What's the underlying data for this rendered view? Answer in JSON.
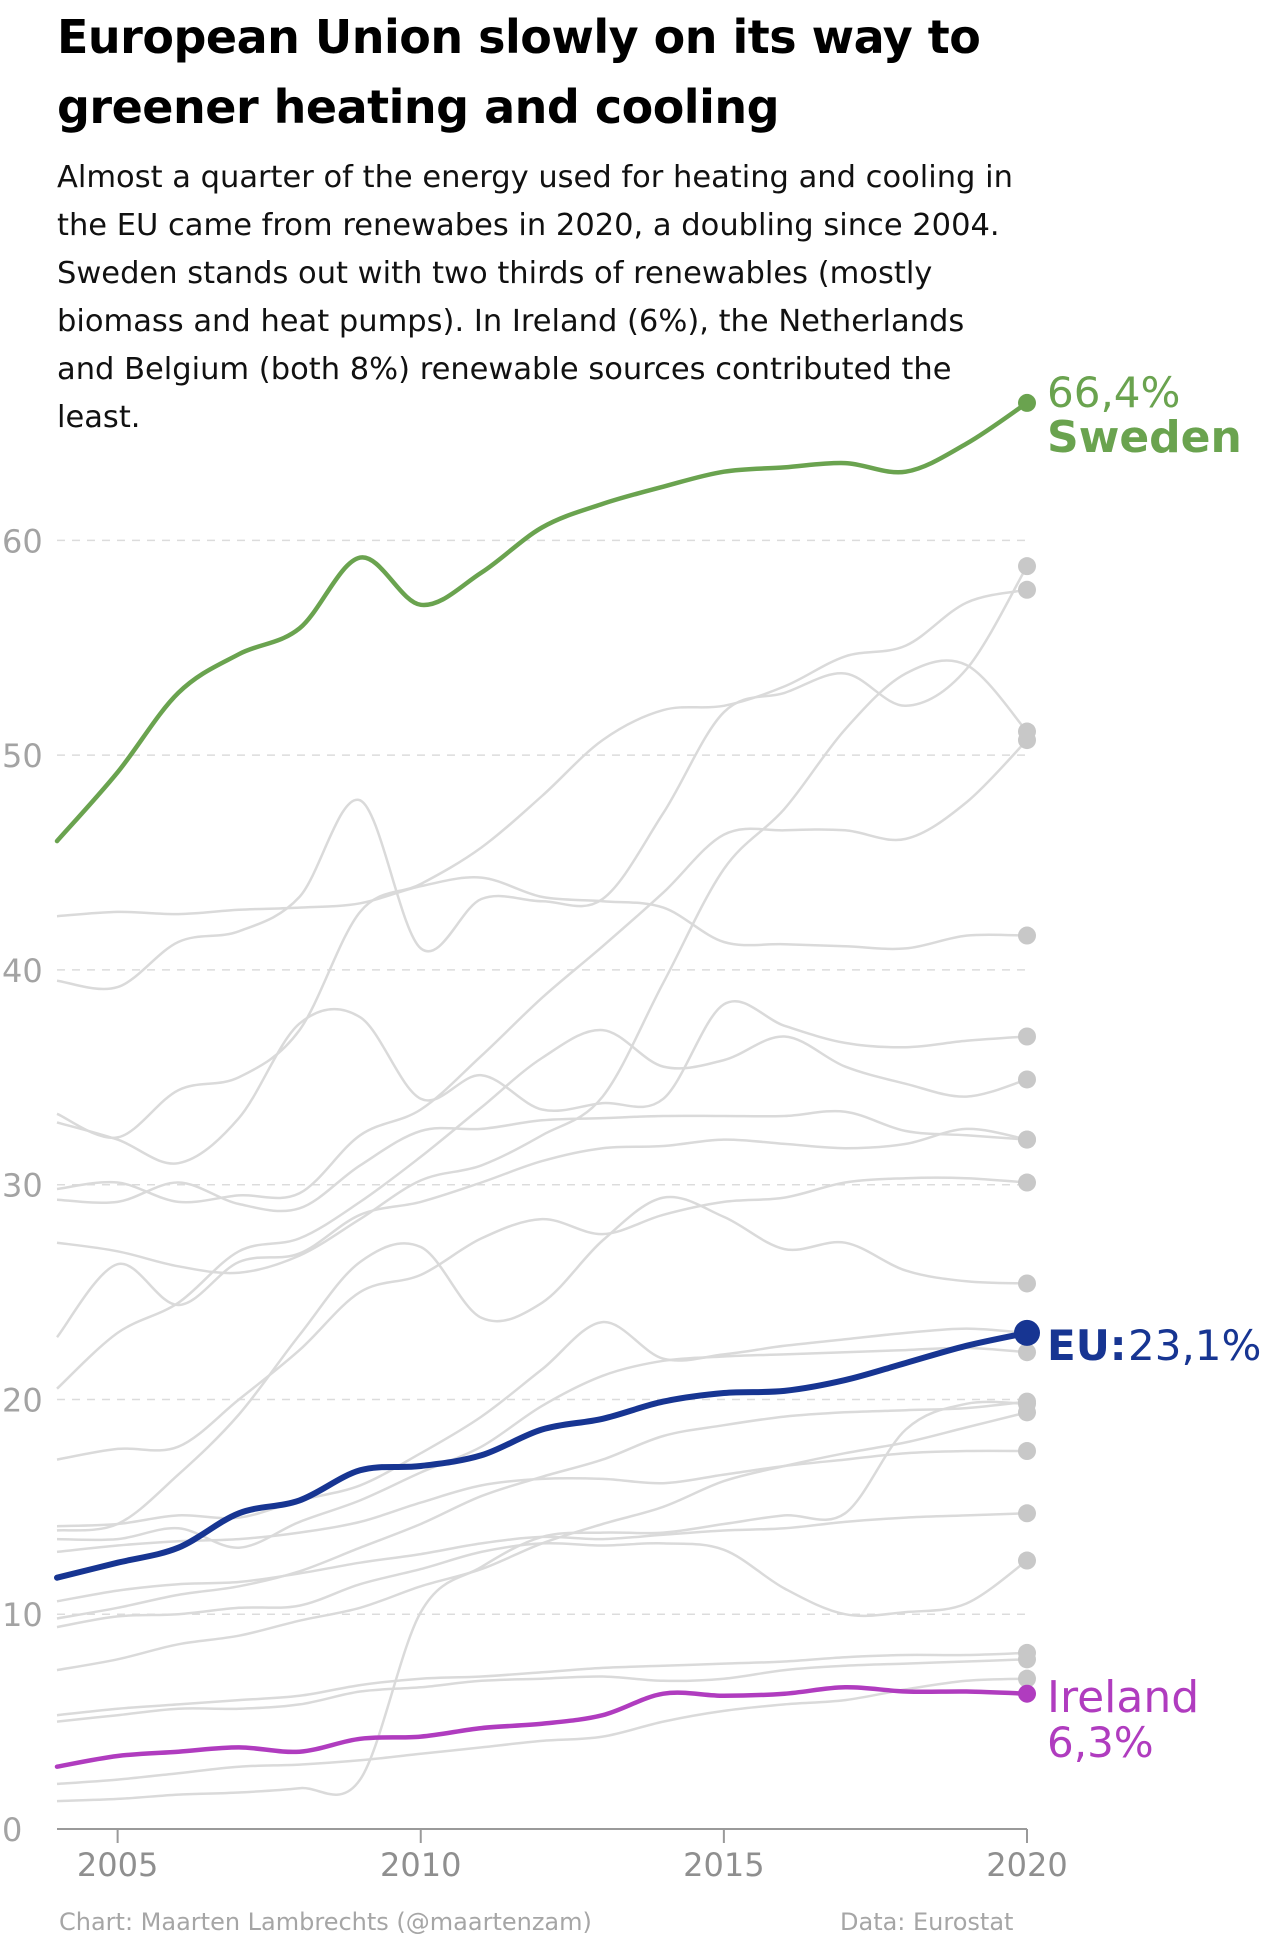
{
  "chart_data": {
    "type": "line",
    "title": "European Union slowly on its way to greener heating and cooling",
    "subtitle": "Almost a quarter of the energy used for heating and cooling in the EU came from renewabes in 2020, a doubling since 2004. Sweden stands out with two thirds of renewables (mostly biomass and heat pumps). In Ireland (6%), the Netherlands and Belgium (both 8%) renewable sources contributed the least.",
    "xlabel": "",
    "ylabel": "",
    "xlim": [
      2004,
      2020
    ],
    "ylim": [
      0,
      65
    ],
    "x_ticks": [
      "2005",
      "2010",
      "2015",
      "2020"
    ],
    "y_ticks": [
      "0",
      "10",
      "20",
      "30",
      "40",
      "50",
      "60"
    ],
    "grid": "horizontal dashed",
    "x": [
      2004,
      2005,
      2006,
      2007,
      2008,
      2009,
      2010,
      2011,
      2012,
      2013,
      2014,
      2015,
      2016,
      2017,
      2018,
      2019,
      2020
    ],
    "highlighted_series": [
      {
        "name": "Sweden",
        "value_label": "66,4%",
        "color": "#6aa34f",
        "values": [
          46.0,
          49.2,
          52.9,
          54.7,
          55.9,
          59.2,
          57.0,
          58.5,
          60.6,
          61.7,
          62.5,
          63.2,
          63.4,
          63.6,
          63.2,
          64.5,
          66.4
        ]
      },
      {
        "name": "EU:",
        "value_label": "23,1%",
        "color": "#173592",
        "values": [
          11.7,
          12.4,
          13.1,
          14.7,
          15.3,
          16.7,
          16.9,
          17.4,
          18.6,
          19.1,
          19.9,
          20.3,
          20.4,
          20.9,
          21.7,
          22.5,
          23.1
        ]
      },
      {
        "name": "Ireland",
        "value_label": "6,3%",
        "color": "#b03cbf",
        "values": [
          2.9,
          3.4,
          3.6,
          3.8,
          3.6,
          4.2,
          4.3,
          4.7,
          4.9,
          5.3,
          6.3,
          6.2,
          6.3,
          6.6,
          6.4,
          6.4,
          6.3
        ]
      }
    ],
    "background_series_color": "#dadada",
    "background_series": [
      {
        "values": [
          39.5,
          39.2,
          41.3,
          41.8,
          43.4,
          47.9,
          41.0,
          43.3,
          43.2,
          43.3,
          47.3,
          52.0,
          52.9,
          53.8,
          52.3,
          54.0,
          58.8
        ]
      },
      {
        "values": [
          33.3,
          32.2,
          34.4,
          35.0,
          37.2,
          42.7,
          44.0,
          45.7,
          48.1,
          50.7,
          52.1,
          52.3,
          53.2,
          54.6,
          55.1,
          57.1,
          57.7
        ]
      },
      {
        "values": [
          29.8,
          30.1,
          29.2,
          29.5,
          29.6,
          32.3,
          33.5,
          36.0,
          38.7,
          41.1,
          43.6,
          46.3,
          46.5,
          46.5,
          46.1,
          47.8,
          50.7
        ]
      },
      {
        "values": [
          27.3,
          26.9,
          26.2,
          25.9,
          26.7,
          28.4,
          30.2,
          30.9,
          32.3,
          34.1,
          39.4,
          44.7,
          47.5,
          51.2,
          53.8,
          54.2,
          51.1
        ]
      },
      {
        "values": [
          42.5,
          42.7,
          42.6,
          42.8,
          42.9,
          43.1,
          43.9,
          44.3,
          43.4,
          43.2,
          42.9,
          41.3,
          41.2,
          41.1,
          41.0,
          41.6,
          41.6
        ]
      },
      {
        "values": [
          32.9,
          32.1,
          31.0,
          33.1,
          37.5,
          37.8,
          34.0,
          35.1,
          33.5,
          33.8,
          34.0,
          38.4,
          37.4,
          36.6,
          36.4,
          36.7,
          36.9
        ]
      },
      {
        "values": [
          20.5,
          23.1,
          24.5,
          26.9,
          27.5,
          29.2,
          31.3,
          33.6,
          35.9,
          37.2,
          35.5,
          35.8,
          36.9,
          35.5,
          34.7,
          34.1,
          34.9
        ]
      },
      {
        "values": [
          29.3,
          29.2,
          30.1,
          29.1,
          28.9,
          30.9,
          32.5,
          32.6,
          33.0,
          33.1,
          33.2,
          33.2,
          33.2,
          33.4,
          32.5,
          32.3,
          32.1
        ]
      },
      {
        "values": [
          22.9,
          26.3,
          24.4,
          26.4,
          26.8,
          28.6,
          29.2,
          30.1,
          31.1,
          31.7,
          31.8,
          32.1,
          31.9,
          31.7,
          31.9,
          32.6,
          32.1
        ]
      },
      {
        "values": [
          13.9,
          14.2,
          16.5,
          19.3,
          23.0,
          26.4,
          27.1,
          23.8,
          24.5,
          27.4,
          29.4,
          28.5,
          27.0,
          27.3,
          26.0,
          25.5,
          25.4
        ]
      },
      {
        "values": [
          17.2,
          17.7,
          17.8,
          20.0,
          22.3,
          25.0,
          25.8,
          27.5,
          28.4,
          27.7,
          28.6,
          29.2,
          29.4,
          30.1,
          30.3,
          30.3,
          30.1
        ]
      },
      {
        "values": [
          14.1,
          14.2,
          14.6,
          14.5,
          15.3,
          16.0,
          17.5,
          19.2,
          21.4,
          23.6,
          21.9,
          22.1,
          22.5,
          22.8,
          23.1,
          23.3,
          23.1
        ]
      },
      {
        "values": [
          13.5,
          13.5,
          14.0,
          13.1,
          14.3,
          15.3,
          16.6,
          17.8,
          19.7,
          21.1,
          21.8,
          22.0,
          22.1,
          22.2,
          22.3,
          22.4,
          22.2
        ]
      },
      {
        "values": [
          9.8,
          10.3,
          10.9,
          11.3,
          12.0,
          13.1,
          14.2,
          15.5,
          16.4,
          17.2,
          18.3,
          18.8,
          19.2,
          19.4,
          19.5,
          19.6,
          19.9
        ]
      },
      {
        "values": [
          7.4,
          7.9,
          8.6,
          9.0,
          9.7,
          10.3,
          11.3,
          12.1,
          13.3,
          14.2,
          15.0,
          16.2,
          16.9,
          17.5,
          18.0,
          18.7,
          19.4
        ]
      },
      {
        "values": [
          12.9,
          13.2,
          13.4,
          13.5,
          13.8,
          14.3,
          15.2,
          16.0,
          16.3,
          16.3,
          16.1,
          16.5,
          16.9,
          17.2,
          17.5,
          17.6,
          17.6
        ]
      },
      {
        "values": [
          10.6,
          11.1,
          11.4,
          11.5,
          11.9,
          12.4,
          12.8,
          13.3,
          13.6,
          13.5,
          13.7,
          13.9,
          14.0,
          14.3,
          14.5,
          14.6,
          14.7
        ]
      },
      {
        "values": [
          9.4,
          9.9,
          10.0,
          10.3,
          10.4,
          11.4,
          12.1,
          12.9,
          13.3,
          13.2,
          13.3,
          13.0,
          11.2,
          10.0,
          10.1,
          10.5,
          12.5
        ]
      },
      {
        "values": [
          5.3,
          5.6,
          5.8,
          6.0,
          6.2,
          6.7,
          7.0,
          7.1,
          7.3,
          7.5,
          7.6,
          7.7,
          7.8,
          8.0,
          8.1,
          8.1,
          8.2
        ]
      },
      {
        "values": [
          5.0,
          5.3,
          5.6,
          5.6,
          5.8,
          6.4,
          6.6,
          6.9,
          7.0,
          7.1,
          6.9,
          7.0,
          7.4,
          7.6,
          7.7,
          7.8,
          7.9
        ]
      },
      {
        "values": [
          1.3,
          1.4,
          1.6,
          1.7,
          1.9,
          2.3,
          10.1,
          12.2,
          13.6,
          13.8,
          13.8,
          14.2,
          14.6,
          14.7,
          18.6,
          19.8,
          19.8
        ]
      },
      {
        "values": [
          2.1,
          2.3,
          2.6,
          2.9,
          3.0,
          3.2,
          3.5,
          3.8,
          4.1,
          4.3,
          5.0,
          5.5,
          5.8,
          6.0,
          6.5,
          6.9,
          7.0
        ]
      }
    ]
  },
  "footer": {
    "credit": "Chart: Maarten Lambrechts (@maartenzam)",
    "source": "Data: Eurostat"
  }
}
